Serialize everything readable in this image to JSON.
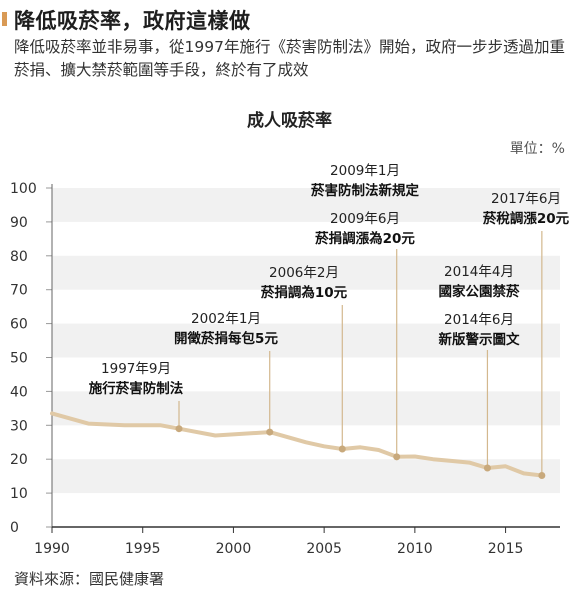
{
  "header": {
    "title": "降低吸菸率，政府這樣做",
    "subtitle": "降低吸菸率並非易事，從1997年施行《菸害防制法》開始，政府一步步透過加重菸捐、擴大禁菸範圍等手段，終於有了成效"
  },
  "chart_data": {
    "type": "line",
    "title": "成人吸菸率",
    "unit_label": "單位：%",
    "xlabel": "",
    "ylabel": "",
    "xlim": [
      1990,
      2018
    ],
    "ylim": [
      0,
      100
    ],
    "x_ticks": [
      1990,
      1995,
      2000,
      2005,
      2010,
      2015
    ],
    "y_ticks": [
      0,
      10,
      20,
      30,
      40,
      50,
      60,
      70,
      80,
      90,
      100
    ],
    "y_tick_labels": [
      "0",
      "10",
      "20",
      "30",
      "40",
      "50",
      "60",
      "70",
      "80",
      "90",
      "100"
    ],
    "grid": "horizontal bands",
    "line_color": "#e0c9a6",
    "marker_color": "#c8a97c",
    "series": [
      {
        "x": [
          1990,
          1992,
          1994,
          1996,
          1997,
          1999,
          2002,
          2004,
          2005,
          2006,
          2007,
          2008,
          2009,
          2010,
          2011,
          2012,
          2013,
          2014,
          2015,
          2016,
          2017
        ],
        "values": [
          33.5,
          30.5,
          30.0,
          30.0,
          29.0,
          27.0,
          28.0,
          25.0,
          23.8,
          23.0,
          23.5,
          22.7,
          20.7,
          20.8,
          20.0,
          19.5,
          19.0,
          17.4,
          17.9,
          15.8,
          15.2
        ]
      }
    ],
    "annotations": [
      {
        "x": 1997,
        "line1": "1997年9月",
        "line2": "施行菸害防制法"
      },
      {
        "x": 2002,
        "line1": "2002年1月",
        "line2": "開徵菸捐每包5元"
      },
      {
        "x": 2006,
        "line1": "2006年2月",
        "line2": "菸捐調為10元"
      },
      {
        "x": 2009,
        "line1": "2009年1月",
        "line2": "菸害防制法新規定",
        "line3": "2009年6月",
        "line4": "菸捐調漲為20元"
      },
      {
        "x": 2014,
        "line1": "2014年4月",
        "line2": "國家公園禁菸",
        "line3": "2014年6月",
        "line4": "新版警示圖文"
      },
      {
        "x": 2017,
        "line1": "2017年6月",
        "line2": "菸稅調漲20元"
      }
    ]
  },
  "footer": {
    "source": "資料來源：國民健康署"
  }
}
